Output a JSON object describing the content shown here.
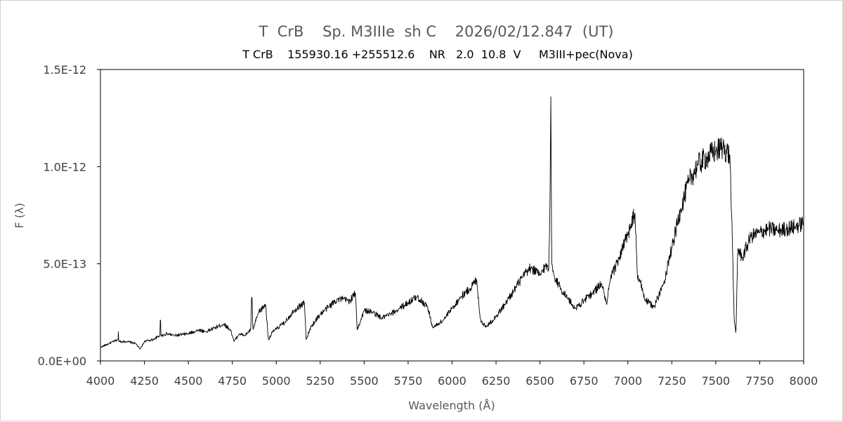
{
  "chart_data": {
    "type": "line",
    "title": "T  CrB    Sp. M3IIIe  sh C    2026/02/12.847  (UT)",
    "subtitle": "T CrB    155930.16 +255512.6    NR   2.0  10.8  V     M3III+pec(Nova)",
    "xlabel": "Wavelength (Å)",
    "ylabel": "F (λ)",
    "xlim": [
      4000,
      8000
    ],
    "ylim": [
      0,
      1.5e-12
    ],
    "x_ticks": [
      4000,
      4250,
      4500,
      4750,
      5000,
      5250,
      5500,
      5750,
      6000,
      6250,
      6500,
      6750,
      7000,
      7250,
      7500,
      7750,
      8000
    ],
    "x_tick_labels": [
      "4000",
      "4250",
      "4500",
      "4750",
      "5000",
      "5250",
      "5500",
      "5750",
      "6000",
      "6250",
      "6500",
      "6750",
      "7000",
      "7250",
      "7500",
      "7750",
      "8000"
    ],
    "y_ticks": [
      0,
      5e-13,
      1e-12,
      1.5e-12
    ],
    "y_tick_labels": [
      "0.0E+00",
      "5.0E-13",
      "1.0E-12",
      "1.5E-12"
    ],
    "grid": false,
    "legend": "none",
    "line_color": "#000000",
    "series": [
      {
        "x": [
          4000,
          4050,
          4100,
          4102,
          4104,
          4150,
          4200,
          4225,
          4250,
          4300,
          4338,
          4341,
          4344,
          4380,
          4420,
          4500,
          4560,
          4600,
          4650,
          4700,
          4740,
          4760,
          4790,
          4820,
          4855,
          4861,
          4867,
          4900,
          4940,
          4955,
          4980,
          5050,
          5100,
          5160,
          5170,
          5200,
          5250,
          5300,
          5350,
          5420,
          5450,
          5460,
          5500,
          5550,
          5600,
          5650,
          5700,
          5750,
          5800,
          5860,
          5890,
          5950,
          6000,
          6050,
          6100,
          6140,
          6160,
          6175,
          6200,
          6250,
          6300,
          6350,
          6400,
          6450,
          6500,
          6530,
          6550,
          6557,
          6562,
          6567,
          6580,
          6620,
          6660,
          6700,
          6750,
          6800,
          6850,
          6880,
          6900,
          6950,
          7000,
          7040,
          7055,
          7070,
          7100,
          7150,
          7200,
          7250,
          7300,
          7350,
          7400,
          7450,
          7500,
          7540,
          7580,
          7595,
          7605,
          7615,
          7625,
          7650,
          7700,
          7750,
          7800,
          7850,
          7900,
          7950,
          8000
        ],
        "y": [
          7e-14,
          9e-14,
          1.1e-13,
          1.5e-13,
          1e-13,
          1e-13,
          9e-14,
          6e-14,
          1e-13,
          1.1e-13,
          1.3e-13,
          2.5e-13,
          1.3e-13,
          1.4e-13,
          1.3e-13,
          1.4e-13,
          1.6e-13,
          1.5e-13,
          1.7e-13,
          1.9e-13,
          1.6e-13,
          1e-13,
          1.4e-13,
          1.3e-13,
          1.6e-13,
          3.6e-13,
          1.6e-13,
          2.5e-13,
          2.9e-13,
          1.1e-13,
          1.5e-13,
          2e-13,
          2.6e-13,
          3e-13,
          1.1e-13,
          1.8e-13,
          2.4e-13,
          2.8e-13,
          3.2e-13,
          3.1e-13,
          3.5e-13,
          1.6e-13,
          2.6e-13,
          2.5e-13,
          2.2e-13,
          2.4e-13,
          2.7e-13,
          3e-13,
          3.3e-13,
          2.8e-13,
          1.7e-13,
          2.1e-13,
          2.7e-13,
          3.3e-13,
          3.7e-13,
          4.2e-13,
          2.2e-13,
          1.9e-13,
          1.8e-13,
          2.3e-13,
          2.9e-13,
          3.6e-13,
          4.3e-13,
          4.8e-13,
          4.4e-13,
          4.9e-13,
          4.7e-13,
          8e-13,
          1.36e-12,
          5e-13,
          4.4e-13,
          3.7e-13,
          3.2e-13,
          2.7e-13,
          3.1e-13,
          3.5e-13,
          4e-13,
          2.9e-13,
          4.2e-13,
          5.3e-13,
          6.5e-13,
          7.6e-13,
          4.2e-13,
          4.1e-13,
          3.1e-13,
          2.8e-13,
          3.9e-13,
          5.8e-13,
          7.8e-13,
          9.3e-13,
          1.01e-12,
          1.05e-12,
          1.08e-12,
          1.1e-12,
          1.06e-12,
          6e-13,
          2e-13,
          1.4e-13,
          5.8e-13,
          5.3e-13,
          6.4e-13,
          6.6e-13,
          6.8e-13,
          6.7e-13,
          6.8e-13,
          6.9e-13,
          7.1e-13
        ]
      }
    ]
  }
}
